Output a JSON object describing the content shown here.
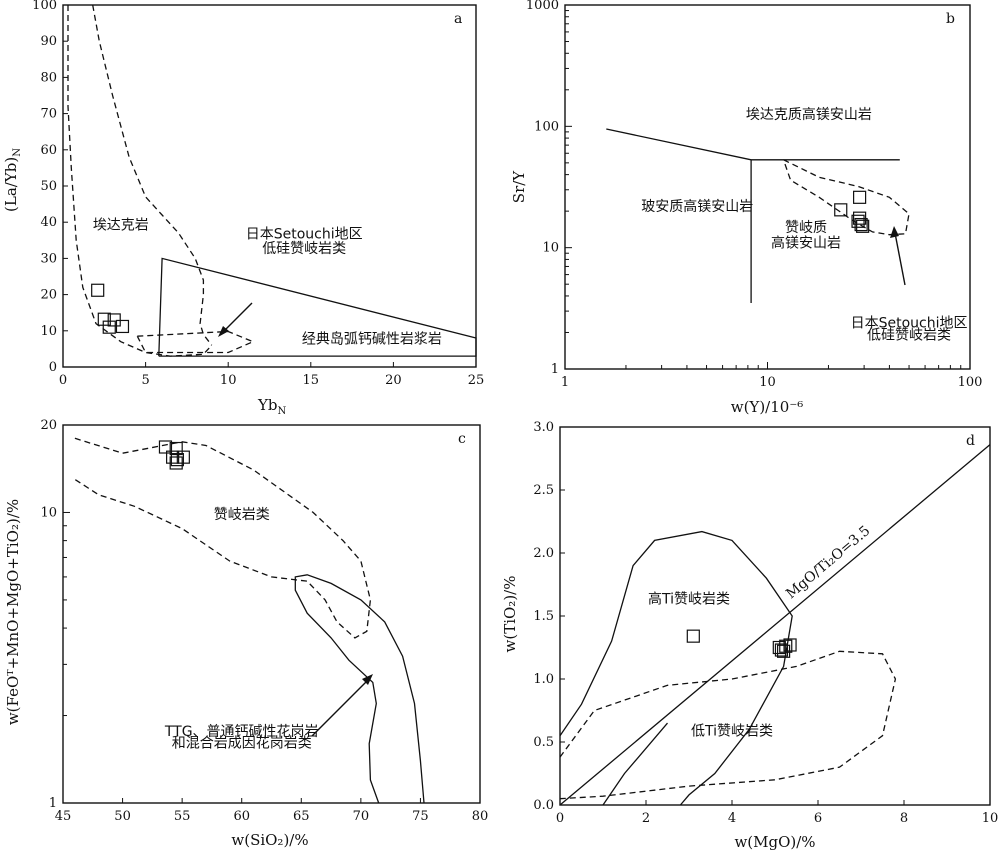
{
  "chart_data": [
    {
      "panel": "a",
      "type": "scatter",
      "xlabel": "Yb",
      "xlabel_sub": "N",
      "ylabel": "(La/Yb)",
      "ylabel_sub": "N",
      "xlim": [
        0,
        25
      ],
      "ylim": [
        0,
        100
      ],
      "xticks": [
        0,
        5,
        10,
        15,
        20,
        25
      ],
      "yticks": [
        0,
        10,
        20,
        30,
        40,
        50,
        60,
        70,
        80,
        90,
        100
      ],
      "points": [
        [
          2.1,
          21.2
        ],
        [
          2.5,
          13.2
        ],
        [
          3.1,
          13.0
        ],
        [
          3.6,
          11.2
        ],
        [
          2.8,
          11.0
        ]
      ],
      "field_labels": [
        {
          "text": "埃达克岩",
          "x": 3.5,
          "y": 38
        },
        {
          "text": "日本Setouchi地区",
          "x": 14.6,
          "y": 35.5
        },
        {
          "text": "低硅赞岐岩类",
          "x": 14.6,
          "y": 31.5
        },
        {
          "text": "经典岛弧钙碱性岩浆岩",
          "x": 18.7,
          "y": 6.5
        }
      ],
      "fields": {
        "adakite_boundary_dashed": [
          [
            0.3,
            100
          ],
          [
            0.3,
            72
          ],
          [
            0.5,
            55
          ],
          [
            0.8,
            35
          ],
          [
            1.2,
            22
          ],
          [
            2.0,
            12
          ],
          [
            3.5,
            7
          ],
          [
            5.0,
            4
          ],
          [
            6.5,
            3
          ],
          [
            8.5,
            3.5
          ],
          [
            9.0,
            6
          ]
        ],
        "adakite_boundary_dashed_2": [
          [
            1.8,
            100
          ],
          [
            2.2,
            90
          ],
          [
            3.0,
            75
          ],
          [
            4.0,
            58
          ],
          [
            5.0,
            47
          ],
          [
            6.0,
            42
          ],
          [
            7.0,
            37
          ],
          [
            8.0,
            30
          ],
          [
            8.5,
            24
          ],
          [
            8.5,
            20
          ],
          [
            8.3,
            12
          ],
          [
            8.5,
            9
          ],
          [
            9.0,
            6
          ]
        ],
        "arc_field_solid": [
          [
            5.8,
            3
          ],
          [
            6.0,
            30
          ],
          [
            25,
            8
          ],
          [
            25,
            3
          ],
          [
            5.8,
            3
          ]
        ],
        "setouchi_field_dashed": [
          [
            4.5,
            8.5
          ],
          [
            10,
            9.8
          ],
          [
            11.5,
            7
          ],
          [
            10,
            4
          ],
          [
            5,
            4
          ],
          [
            4.5,
            8.5
          ]
        ]
      }
    },
    {
      "panel": "b",
      "type": "scatter",
      "xlabel": "w(Y)/10⁻⁶",
      "ylabel": "Sr/Y",
      "xscale": "log",
      "yscale": "log",
      "xlim": [
        1,
        100
      ],
      "ylim": [
        1,
        1000
      ],
      "xtick_labels": [
        "1",
        "10",
        "100"
      ],
      "ytick_labels": [
        "1",
        "10",
        "100",
        "1000"
      ],
      "points": [
        [
          28.5,
          26.0
        ],
        [
          23.0,
          20.5
        ],
        [
          28.0,
          16.5
        ],
        [
          29.0,
          15.5
        ],
        [
          28.5,
          17.5
        ],
        [
          29.5,
          15.0
        ]
      ],
      "field_labels": [
        {
          "text": "埃达克质高镁安山岩",
          "x": 16,
          "y": 115
        },
        {
          "text": "玻安质高镁安山岩",
          "x": 4.5,
          "y": 20
        },
        {
          "text": "赞岐质",
          "x": 15.5,
          "y": 13.5
        },
        {
          "text": "高镁安山岩",
          "x": 15.5,
          "y": 10
        },
        {
          "text": "日本Setouchi地区",
          "x": 50,
          "y": 2.2
        },
        {
          "text": "低硅赞岐岩类",
          "x": 50,
          "y": 1.75
        }
      ],
      "fields": {
        "upper_boundary_solid": [
          [
            1.6,
            95
          ],
          [
            8.3,
            53
          ],
          [
            45,
            53
          ]
        ],
        "vertical_boundary_solid": [
          [
            8.3,
            53
          ],
          [
            8.3,
            3.5
          ]
        ],
        "setouchi_dashed": [
          [
            12,
            53
          ],
          [
            18,
            38
          ],
          [
            28,
            32
          ],
          [
            40,
            26
          ],
          [
            50,
            19
          ],
          [
            48,
            13
          ],
          [
            40,
            12.8
          ],
          [
            33,
            13.5
          ],
          [
            26,
            17
          ],
          [
            18,
            26
          ],
          [
            13,
            36
          ],
          [
            12,
            53
          ]
        ]
      }
    },
    {
      "panel": "c",
      "type": "scatter",
      "xlabel": "w(SiO₂)/%",
      "ylabel": "w(FeOᵀ+MnO+MgO+TiO₂)/%",
      "yscale": "log",
      "xlim": [
        45,
        80
      ],
      "ylim": [
        1,
        20
      ],
      "xticks": [
        45,
        50,
        55,
        60,
        65,
        70,
        75,
        80
      ],
      "ytick_labels": [
        "1",
        "10",
        "20"
      ],
      "points": [
        [
          53.6,
          16.8
        ],
        [
          54.5,
          16.6
        ],
        [
          54.2,
          15.5
        ],
        [
          54.6,
          15.2
        ],
        [
          55.1,
          15.5
        ],
        [
          54.5,
          14.8
        ]
      ],
      "field_labels": [
        {
          "text": "赞岐岩类",
          "x": 60,
          "y": 9.5
        },
        {
          "text": "TTG、普通钙碱性花岗岩",
          "x": 60,
          "y": 1.7
        },
        {
          "text": "和混合岩成因花岗岩类",
          "x": 60,
          "y": 1.55
        }
      ],
      "fields": {
        "sanukitoid_dashed": [
          [
            46,
            18
          ],
          [
            50,
            16
          ],
          [
            55,
            17.5
          ],
          [
            57,
            17
          ],
          [
            61,
            14
          ],
          [
            66,
            10
          ],
          [
            68.5,
            8
          ],
          [
            70,
            6.8
          ],
          [
            70.8,
            5
          ],
          [
            70.5,
            3.9
          ],
          [
            69.5,
            3.7
          ],
          [
            68,
            4.2
          ],
          [
            67,
            5
          ],
          [
            65.5,
            5.8
          ],
          [
            62.5,
            6
          ],
          [
            59,
            6.8
          ],
          [
            55,
            8.8
          ],
          [
            51,
            10.5
          ],
          [
            48,
            11.5
          ],
          [
            46,
            13
          ]
        ],
        "ttg_solid": [
          [
            71.5,
            1
          ],
          [
            70.8,
            1.2
          ],
          [
            70.7,
            1.6
          ],
          [
            71.3,
            2.2
          ],
          [
            71,
            2.6
          ],
          [
            69,
            3.1
          ],
          [
            67.5,
            3.7
          ],
          [
            65.5,
            4.5
          ],
          [
            64.5,
            5.4
          ],
          [
            64.5,
            6.0
          ],
          [
            65.5,
            6.1
          ],
          [
            67.5,
            5.7
          ],
          [
            70,
            5
          ],
          [
            72,
            4.2
          ],
          [
            73.5,
            3.2
          ],
          [
            74.5,
            2.2
          ],
          [
            75,
            1.4
          ],
          [
            75.3,
            1
          ]
        ]
      }
    },
    {
      "panel": "d",
      "type": "scatter",
      "xlabel": "w(MgO)/%",
      "ylabel": "w(TiO₂)/%",
      "xlim": [
        0,
        10
      ],
      "ylim": [
        0,
        3.0
      ],
      "xticks": [
        0,
        2,
        4,
        6,
        8,
        10
      ],
      "yticks": [
        "0.0",
        "0.5",
        "1.0",
        "1.5",
        "2.0",
        "2.5",
        "3.0"
      ],
      "points": [
        [
          3.1,
          1.34
        ],
        [
          5.1,
          1.25
        ],
        [
          5.15,
          1.23
        ],
        [
          5.25,
          1.26
        ],
        [
          5.35,
          1.27
        ],
        [
          5.2,
          1.22
        ]
      ],
      "reference_line": {
        "label": "MgO/Ti₂O=3.5",
        "x": [
          0,
          10
        ],
        "y": [
          0,
          2.86
        ]
      },
      "field_labels": [
        {
          "text": "高Ti赞岐岩类",
          "x": 3.0,
          "y": 1.6
        },
        {
          "text": "低Ti赞岐岩类",
          "x": 4.0,
          "y": 0.55
        },
        {
          "text": "MgO/Ti₂O=3.5",
          "x": 6.3,
          "y": 1.9
        }
      ],
      "fields": {
        "high_ti_solid": [
          [
            0,
            0.55
          ],
          [
            0.5,
            0.8
          ],
          [
            1.2,
            1.3
          ],
          [
            1.7,
            1.9
          ],
          [
            2.2,
            2.1
          ],
          [
            3.3,
            2.17
          ],
          [
            4.0,
            2.1
          ],
          [
            4.8,
            1.8
          ],
          [
            5.4,
            1.5
          ],
          [
            5.2,
            1.1
          ],
          [
            4.4,
            0.6
          ],
          [
            3.6,
            0.25
          ],
          [
            3.0,
            0.08
          ],
          [
            2.8,
            0.0
          ]
        ],
        "high_ti_inner_solid": [
          [
            1.0,
            0.0
          ],
          [
            1.5,
            0.25
          ],
          [
            2.5,
            0.65
          ]
        ],
        "low_ti_dashed": [
          [
            0,
            0.38
          ],
          [
            0.8,
            0.75
          ],
          [
            2.5,
            0.95
          ],
          [
            4.0,
            1.0
          ],
          [
            5.5,
            1.1
          ],
          [
            6.5,
            1.22
          ],
          [
            7.5,
            1.2
          ],
          [
            7.8,
            1.0
          ],
          [
            7.5,
            0.55
          ],
          [
            6.5,
            0.3
          ],
          [
            5.0,
            0.2
          ],
          [
            3.0,
            0.15
          ],
          [
            1.0,
            0.07
          ],
          [
            0,
            0.05
          ]
        ]
      }
    }
  ]
}
